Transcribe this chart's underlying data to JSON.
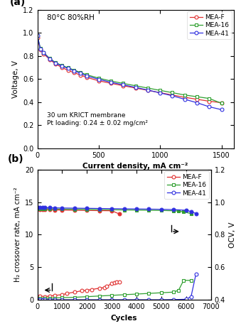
{
  "panel_a": {
    "xlabel": "Current density, mA cm⁻²",
    "ylabel": "Voltage, V",
    "annotation1": "80°C 80%RH",
    "annotation2": "30 um KRICT membrane\nPt loading: 0.24 ± 0.02 mg/cm²",
    "xlim": [
      0,
      1600
    ],
    "ylim": [
      0.0,
      1.2
    ],
    "xticks": [
      0,
      500,
      1000,
      1500
    ],
    "yticks": [
      0.0,
      0.2,
      0.4,
      0.6,
      0.8,
      1.0,
      1.2
    ],
    "mea_f": {
      "current": [
        0,
        25,
        50,
        100,
        150,
        200,
        250,
        300,
        350,
        400,
        500,
        600,
        700,
        800,
        900,
        1000,
        1100,
        1200,
        1300,
        1400,
        1500
      ],
      "voltage": [
        0.96,
        0.855,
        0.82,
        0.77,
        0.73,
        0.7,
        0.675,
        0.655,
        0.635,
        0.615,
        0.585,
        0.563,
        0.542,
        0.522,
        0.502,
        0.482,
        0.462,
        0.442,
        0.425,
        0.408,
        0.395
      ],
      "color": "#e03030",
      "marker": "o",
      "label": "MEA-F"
    },
    "mea_16": {
      "current": [
        0,
        25,
        50,
        100,
        150,
        200,
        250,
        300,
        350,
        400,
        500,
        600,
        700,
        800,
        900,
        1000,
        1100,
        1200,
        1300,
        1400,
        1500
      ],
      "voltage": [
        0.975,
        0.865,
        0.832,
        0.778,
        0.742,
        0.718,
        0.698,
        0.678,
        0.658,
        0.638,
        0.608,
        0.583,
        0.562,
        0.542,
        0.522,
        0.502,
        0.482,
        0.462,
        0.447,
        0.432,
        0.39
      ],
      "color": "#30a030",
      "marker": "s",
      "label": "MEA-16"
    },
    "mea_41": {
      "current": [
        0,
        25,
        50,
        100,
        150,
        200,
        250,
        300,
        350,
        400,
        500,
        600,
        700,
        800,
        900,
        1000,
        1100,
        1200,
        1300,
        1400,
        1500
      ],
      "voltage": [
        0.975,
        0.86,
        0.828,
        0.775,
        0.738,
        0.712,
        0.692,
        0.672,
        0.65,
        0.628,
        0.598,
        0.572,
        0.55,
        0.528,
        0.505,
        0.48,
        0.455,
        0.425,
        0.395,
        0.36,
        0.335
      ],
      "color": "#3030e0",
      "marker": "o",
      "label": "MEA-41"
    }
  },
  "panel_b": {
    "xlabel": "Cycles",
    "ylabel_left": "H₂ crossover rate, mA cm⁻²",
    "ylabel_right": "OCV, V",
    "xlim": [
      0,
      7000
    ],
    "ylim_left": [
      0,
      20
    ],
    "ylim_right": [
      0.4,
      1.2
    ],
    "xticks": [
      0,
      1000,
      2000,
      3000,
      4000,
      5000,
      6000,
      7000
    ],
    "yticks_left": [
      0,
      5,
      10,
      15,
      20
    ],
    "yticks_right": [
      0.4,
      0.6,
      0.8,
      1.0,
      1.2
    ],
    "mea_f_cross": {
      "cycles": [
        0,
        50,
        100,
        200,
        300,
        500,
        700,
        1000,
        1200,
        1500,
        1800,
        2000,
        2200,
        2500,
        2700,
        2800,
        3000,
        3100,
        3200,
        3300
      ],
      "values": [
        0.05,
        0.5,
        0.6,
        0.4,
        0.5,
        0.6,
        0.7,
        0.8,
        1.0,
        1.2,
        1.4,
        1.5,
        1.6,
        1.8,
        1.9,
        2.1,
        2.5,
        2.6,
        2.7,
        2.8
      ],
      "color": "#e03030",
      "marker": "o",
      "label": "MEA-F"
    },
    "mea_16_cross": {
      "cycles": [
        0,
        50,
        100,
        200,
        300,
        500,
        700,
        1000,
        1500,
        2000,
        2500,
        3000,
        3500,
        4000,
        4500,
        5000,
        5500,
        5700,
        5900,
        6200
      ],
      "values": [
        0.05,
        0.15,
        0.2,
        0.15,
        0.2,
        0.25,
        0.3,
        0.35,
        0.4,
        0.5,
        0.6,
        0.7,
        0.8,
        0.9,
        1.0,
        1.1,
        1.2,
        1.5,
        3.0,
        3.0
      ],
      "color": "#30a030",
      "marker": "s",
      "label": "MEA-16"
    },
    "mea_41_cross": {
      "cycles": [
        0,
        50,
        100,
        200,
        300,
        500,
        700,
        1000,
        1500,
        2000,
        2500,
        3000,
        3500,
        4000,
        4500,
        5000,
        5500,
        6000,
        6200,
        6400
      ],
      "values": [
        0.02,
        0.02,
        0.02,
        0.02,
        0.02,
        0.02,
        0.02,
        0.02,
        0.02,
        0.02,
        0.02,
        0.02,
        0.02,
        0.02,
        0.02,
        0.02,
        0.05,
        0.1,
        0.5,
        4.0
      ],
      "color": "#3030e0",
      "marker": "o",
      "label": "MEA-41"
    },
    "mea_f_ocv": {
      "cycles": [
        0,
        100,
        200,
        300,
        500,
        700,
        1000,
        1500,
        2000,
        2500,
        3000,
        3300
      ],
      "values": [
        0.958,
        0.956,
        0.955,
        0.954,
        0.953,
        0.952,
        0.951,
        0.95,
        0.949,
        0.948,
        0.947,
        0.928
      ],
      "color": "#e03030",
      "marker": "o",
      "label": "MEA-F"
    },
    "mea_16_ocv": {
      "cycles": [
        0,
        100,
        200,
        300,
        500,
        700,
        1000,
        1500,
        2000,
        2500,
        3000,
        3500,
        4000,
        4500,
        5000,
        5500,
        5700,
        5900,
        6200
      ],
      "values": [
        0.962,
        0.961,
        0.96,
        0.96,
        0.959,
        0.958,
        0.957,
        0.956,
        0.955,
        0.954,
        0.953,
        0.952,
        0.951,
        0.95,
        0.949,
        0.947,
        0.945,
        0.94,
        0.93
      ],
      "color": "#30a030",
      "marker": "s",
      "label": "MEA-16"
    },
    "mea_41_ocv": {
      "cycles": [
        0,
        100,
        200,
        300,
        500,
        700,
        1000,
        1500,
        2000,
        2500,
        3000,
        3500,
        4000,
        4500,
        5000,
        5500,
        6000,
        6200,
        6400
      ],
      "values": [
        0.968,
        0.967,
        0.967,
        0.966,
        0.966,
        0.965,
        0.964,
        0.963,
        0.962,
        0.961,
        0.96,
        0.959,
        0.958,
        0.957,
        0.956,
        0.954,
        0.95,
        0.942,
        0.93
      ],
      "color": "#3030e0",
      "marker": "o",
      "label": "MEA-41"
    }
  }
}
